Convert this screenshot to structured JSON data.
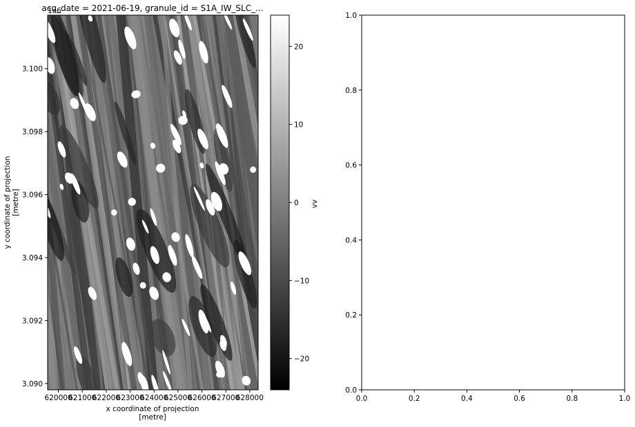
{
  "chart_data": [
    {
      "type": "heatmap",
      "title": "acq_date = 2021-06-19, granule_id = S1A_IW_SLC_...",
      "xlabel": "x coordinate of projection\n[metre]",
      "ylabel": "y coordinate of projection\n[metre]",
      "y_offset_label": "1e6",
      "x_ticks": [
        620000,
        621000,
        622000,
        623000,
        624000,
        625000,
        626000,
        627000,
        628000
      ],
      "x_tick_labels": [
        "620000",
        "621000",
        "622000",
        "623000",
        "624000",
        "625000",
        "626000",
        "627000",
        "628000"
      ],
      "xlim": [
        619550,
        628350
      ],
      "y_ticks": [
        3.09,
        3.092,
        3.094,
        3.096,
        3.098,
        3.1
      ],
      "y_tick_labels": [
        "3.090",
        "3.092",
        "3.094",
        "3.096",
        "3.098",
        "3.100"
      ],
      "ylim": [
        3.0898,
        3.1017
      ],
      "colormap": "gray",
      "nodata_color": "#ffffff",
      "colorbar": {
        "label": "vv",
        "vmin": -24,
        "vmax": 24,
        "ticks": [
          -20,
          -10,
          0,
          10,
          20
        ],
        "tick_labels": [
          "−20",
          "−10",
          "0",
          "10",
          "20"
        ]
      }
    },
    {
      "type": "scatter",
      "title": "",
      "xlabel": "",
      "ylabel": "",
      "xlim": [
        0,
        1
      ],
      "ylim": [
        0,
        1
      ],
      "x": [],
      "y": [],
      "x_tick_labels": [
        "0.0",
        "0.2",
        "0.4",
        "0.6",
        "0.8",
        "1.0"
      ],
      "y_tick_labels": [
        "0.0",
        "0.2",
        "0.4",
        "0.6",
        "0.8",
        "1.0"
      ]
    }
  ]
}
